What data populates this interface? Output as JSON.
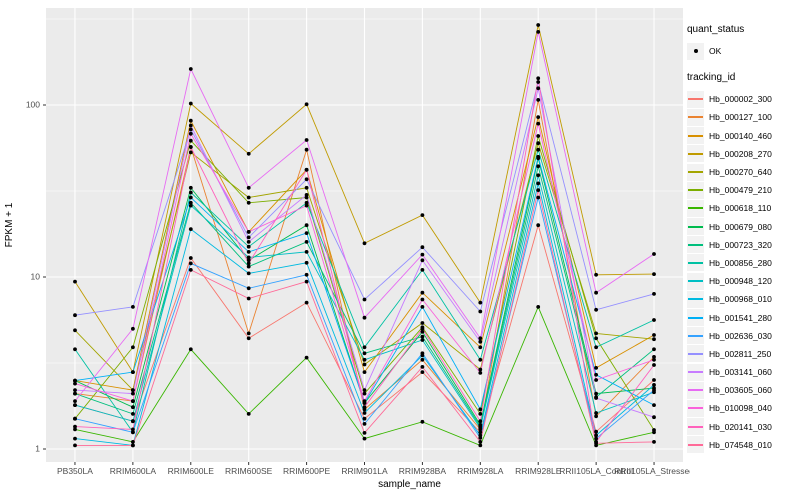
{
  "chart_data": {
    "type": "line",
    "title": "",
    "xlabel": "sample_name",
    "ylabel": "FPKM + 1",
    "y_scale": "log10",
    "y_ticks": [
      "1",
      "10",
      "100"
    ],
    "y_tick_values": [
      1,
      10,
      100
    ],
    "y_minor_values": [
      3.162,
      31.62,
      316.2
    ],
    "ylim": [
      0.85,
      366
    ],
    "grid": true,
    "legend_position": "right",
    "point_color": "#000000",
    "panel_bg": "#EBEBEB",
    "grid_color": "#FFFFFF",
    "axis_text_color": "#4D4D4D",
    "legend_key_bg": "#F2F2F2",
    "categories": [
      "PB350LA",
      "RRIM600LA",
      "RRIM600LE",
      "RRIM600SE",
      "RRIM600PE",
      "RRIM901LA",
      "RRIM928BA",
      "RRIM928LA",
      "RRIM928LE",
      "RRII105LA_Control",
      "RRII105LA_Stressed"
    ],
    "legend": {
      "quant_status": {
        "title": "quant_status",
        "items": [
          {
            "label": "OK",
            "marker": "point",
            "color": "#000000"
          }
        ]
      },
      "tracking_id": {
        "title": "tracking_id"
      }
    },
    "series": [
      {
        "id": "Hb_000002_300",
        "color": "#F8766D",
        "values": [
          1.8,
          1.45,
          12.9,
          4.4,
          7.1,
          1.5,
          2.8,
          1.25,
          20,
          1.26,
          2.52
        ]
      },
      {
        "id": "Hb_000127_100",
        "color": "#EA8331",
        "values": [
          2.1,
          1.9,
          57,
          4.7,
          55,
          1.7,
          3.3,
          1.3,
          107,
          1.55,
          3.43
        ]
      },
      {
        "id": "Hb_000140_460",
        "color": "#D89000",
        "values": [
          2.5,
          2.2,
          81,
          18.3,
          42,
          2.8,
          8.1,
          3.9,
          85,
          2.96,
          4.6
        ]
      },
      {
        "id": "Hb_000208_270",
        "color": "#C09B00",
        "values": [
          9.4,
          2.8,
          102,
          52,
          101,
          15.7,
          22.9,
          7.1,
          292,
          10.3,
          10.4
        ]
      },
      {
        "id": "Hb_000270_640",
        "color": "#A3A500",
        "values": [
          4.9,
          2.2,
          53,
          29,
          33,
          3.1,
          5.4,
          2.9,
          60,
          4.7,
          4.35
        ]
      },
      {
        "id": "Hb_000479_210",
        "color": "#7CAE00",
        "values": [
          1.5,
          3.9,
          62,
          27,
          29,
          2.1,
          5.1,
          1.6,
          66,
          4.4,
          1.29
        ]
      },
      {
        "id": "Hb_000618_110",
        "color": "#39B600",
        "values": [
          1.3,
          1.1,
          3.8,
          1.6,
          3.4,
          1.15,
          1.44,
          1.05,
          6.7,
          1.05,
          1.25
        ]
      },
      {
        "id": "Hb_000679_080",
        "color": "#00BB4E",
        "values": [
          2.5,
          1.75,
          33,
          12.5,
          20,
          1.85,
          4.8,
          1.38,
          49,
          2.1,
          2.26
        ]
      },
      {
        "id": "Hb_000723_320",
        "color": "#00BF7D",
        "values": [
          2.1,
          1.6,
          27,
          11.5,
          16,
          3.6,
          4.5,
          1.35,
          44,
          2.0,
          3.8
        ]
      },
      {
        "id": "Hb_000856_280",
        "color": "#00C1A3",
        "values": [
          3.8,
          1.25,
          31,
          15,
          27,
          3.9,
          11,
          3.3,
          55,
          3.9,
          5.62
        ]
      },
      {
        "id": "Hb_000948_120",
        "color": "#00BFC4",
        "values": [
          1.8,
          1.45,
          26,
          13,
          14,
          3.3,
          4.3,
          1.32,
          39,
          1.62,
          2.14
        ]
      },
      {
        "id": "Hb_000968_010",
        "color": "#00BAE0",
        "values": [
          1.15,
          1.05,
          19,
          10.5,
          12.1,
          1.62,
          3.5,
          1.2,
          35,
          1.2,
          2.36
        ]
      },
      {
        "id": "Hb_001541_280",
        "color": "#00B0F6",
        "values": [
          2.5,
          2.8,
          29,
          14,
          18,
          1.85,
          6.7,
          1.7,
          50,
          2.7,
          1.8
        ]
      },
      {
        "id": "Hb_002636_030",
        "color": "#35A2FF",
        "values": [
          1.5,
          1.25,
          12,
          8.6,
          10.3,
          1.4,
          3.6,
          1.16,
          29,
          1.15,
          2.2
        ]
      },
      {
        "id": "Hb_002811_250",
        "color": "#9590FF",
        "values": [
          6.0,
          6.7,
          72,
          17,
          37,
          7.4,
          14.9,
          6.3,
          136,
          6.45,
          7.97
        ]
      },
      {
        "id": "Hb_003141_060",
        "color": "#C77CFF",
        "values": [
          2.2,
          2.1,
          76,
          16,
          30,
          2.2,
          12.5,
          4.2,
          125,
          1.98,
          1.53
        ]
      },
      {
        "id": "Hb_003605_060",
        "color": "#E76BF3",
        "values": [
          1.9,
          5.0,
          162,
          33,
          62.6,
          5.8,
          13.5,
          4.4,
          266,
          8.1,
          13.6
        ]
      },
      {
        "id": "Hb_010098_040",
        "color": "#FA62DB",
        "values": [
          2.4,
          1.9,
          68,
          18.3,
          26,
          1.9,
          7.4,
          2.77,
          78,
          2.52,
          3.3
        ]
      },
      {
        "id": "Hb_020141_030",
        "color": "#FF62BC",
        "values": [
          1.35,
          1.3,
          57,
          12,
          42,
          1.75,
          5.0,
          1.45,
          143,
          1.1,
          3.08
        ]
      },
      {
        "id": "Hb_074548_010",
        "color": "#FF6A98",
        "values": [
          1.05,
          1.05,
          11,
          7.5,
          9.4,
          1.24,
          3.0,
          1.1,
          32,
          1.08,
          1.1
        ]
      }
    ]
  }
}
